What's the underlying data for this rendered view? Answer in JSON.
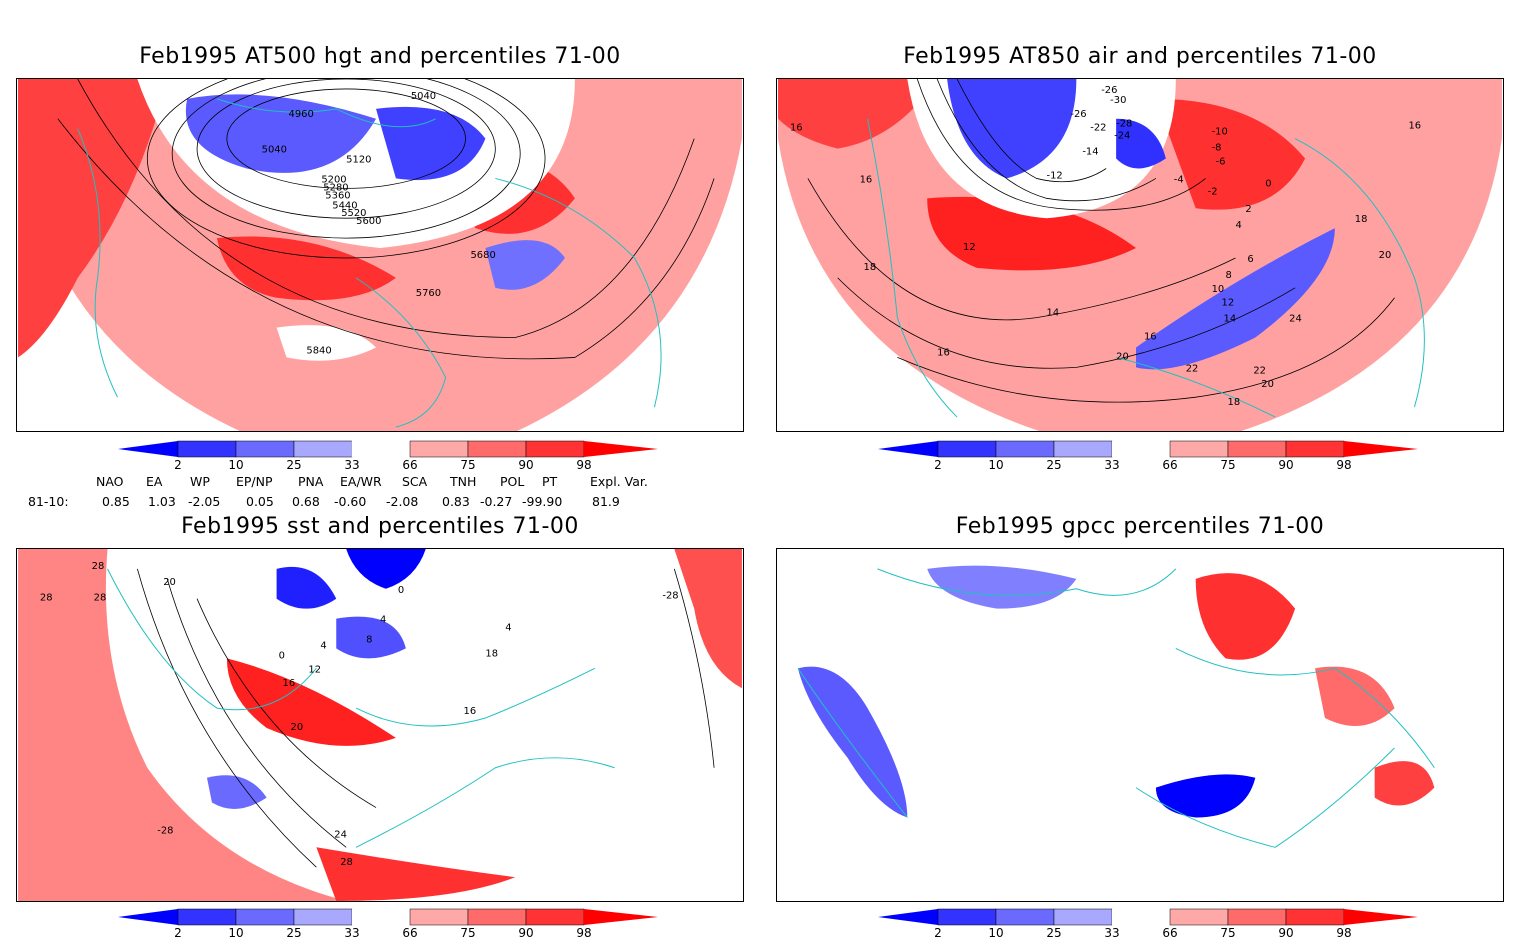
{
  "panels": [
    {
      "id": "hgt500",
      "title": "Feb1995 AT500 hgt and percentiles 71-00",
      "contour_labels": [
        "5040",
        "4960",
        "5040",
        "5120",
        "5200",
        "5280",
        "5360",
        "5440",
        "5520",
        "5600",
        "5680",
        "5760",
        "5840"
      ]
    },
    {
      "id": "air850",
      "title": "Feb1995 AT850 air and percentiles 71-00",
      "contour_labels": [
        "-26",
        "-30",
        "-26",
        "-22",
        "-28",
        "-24",
        "-14",
        "-12",
        "-10",
        "-8",
        "-6",
        "-4",
        "-2",
        "0",
        "2",
        "4",
        "6",
        "8",
        "10",
        "12",
        "12",
        "14",
        "14",
        "16",
        "16",
        "16",
        "16",
        "16",
        "18",
        "18",
        "18",
        "20",
        "20",
        "20",
        "22",
        "22",
        "24"
      ]
    },
    {
      "id": "sst",
      "title": "Feb1995 sst and percentiles 71-00",
      "contour_labels": [
        "28",
        "28",
        "28",
        "20",
        "0",
        "4",
        "4",
        "8",
        "0",
        "12",
        "16",
        "20",
        "24",
        "28",
        "-28",
        "-28",
        "18",
        "16",
        "4"
      ]
    },
    {
      "id": "gpcc",
      "title": "Feb1995 gpcc percentiles 71-00",
      "contour_labels": []
    }
  ],
  "colorbar": {
    "ticks": [
      "2",
      "10",
      "25",
      "33",
      "66",
      "75",
      "90",
      "98"
    ],
    "colors": [
      "#0000ff",
      "#3333ff",
      "#6a6aff",
      "#a8a8ff",
      "#ffffff",
      "#ffa8a8",
      "#ff6a6a",
      "#ff3333",
      "#ff0000"
    ]
  },
  "indices": {
    "headers": [
      "NAO",
      "EA",
      "WP",
      "EP/NP",
      "PNA",
      "EA/WR",
      "SCA",
      "TNH",
      "POL",
      "PT",
      "Expl. Var."
    ],
    "row_label": "81-10:",
    "values": [
      "0.85",
      "1.03",
      "-2.05",
      "0.05",
      "0.68",
      "-0.60",
      "-2.08",
      "0.83",
      "-0.27",
      "-99.90",
      "81.9"
    ]
  },
  "colors": {
    "coast": "#20c0c0",
    "contour": "#000000",
    "grid": "#999999"
  }
}
